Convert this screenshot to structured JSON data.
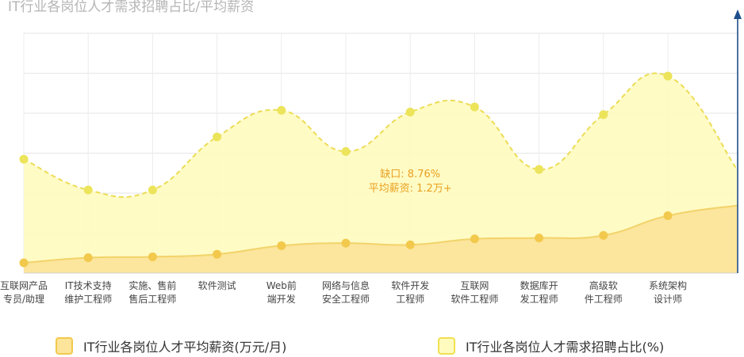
{
  "chart_data": {
    "type": "area",
    "title": "IT行业各岗位人才需求招聘占比/平均薪资",
    "categories": [
      [
        "互联网产品",
        "专员/助理"
      ],
      [
        "IT技术支持",
        "维护工程师"
      ],
      [
        "实施、售前",
        "售后工程师"
      ],
      [
        "软件测试"
      ],
      [
        "Web前",
        "端开发"
      ],
      [
        "网络与信息",
        "安全工程师"
      ],
      [
        "软件开发",
        "工程师"
      ],
      [
        "互联网",
        "软件工程师"
      ],
      [
        "数据库开",
        "发工程师"
      ],
      [
        "高级软",
        "件工程师"
      ],
      [
        "系统架构",
        "设计师"
      ]
    ],
    "series": [
      {
        "name": "IT行业各岗位人才平均薪资(万元/月)",
        "values": [
          0.6,
          0.9,
          0.95,
          1.1,
          1.6,
          1.75,
          1.65,
          2.0,
          2.05,
          2.2,
          3.35
        ],
        "color": "#f2c94c",
        "fill": "#fce49a"
      },
      {
        "name": "IT行业各岗位人才需求招聘占比(%)",
        "values": [
          6.65,
          4.85,
          4.85,
          7.95,
          9.5,
          7.1,
          9.4,
          9.7,
          6.05,
          9.25,
          11.5
        ],
        "color": "#f0e050",
        "fill": "#fffbbf"
      }
    ],
    "annotation": {
      "category_index": 6,
      "line1": "缺口: 8.76%",
      "line2": "平均薪资: 1.2万+",
      "color": "#e8a020"
    },
    "grid": true,
    "legend_position": "bottom"
  }
}
